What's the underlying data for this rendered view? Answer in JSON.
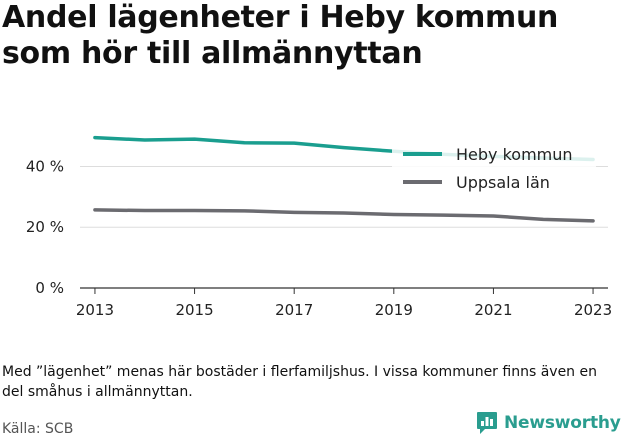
{
  "title": "Andel lägenheter i Heby kommun som hör till allmännyttan",
  "note": "Med ”lägenhet” menas här bostäder i flerfamiljshus. I vissa kommuner finns även en del småhus i allmännyttan.",
  "source": "Källa: SCB",
  "brand": {
    "name": "Newsworthy",
    "icon": "bar-chart-speech-bubble-icon",
    "color": "#2a9d8f"
  },
  "chart_data": {
    "type": "line",
    "title": "Andel lägenheter i Heby kommun som hör till allmännyttan",
    "xlabel": "",
    "ylabel": "",
    "x": [
      2013,
      2014,
      2015,
      2016,
      2017,
      2018,
      2019,
      2020,
      2021,
      2022,
      2023
    ],
    "xticks": [
      "2013",
      "2015",
      "2017",
      "2019",
      "2021",
      "2023"
    ],
    "xtick_values": [
      2013,
      2015,
      2017,
      2019,
      2021,
      2023
    ],
    "yticks": [
      "0 %",
      "20 %",
      "40 %"
    ],
    "ytick_values": [
      0,
      20,
      40
    ],
    "ylim": [
      0,
      52
    ],
    "xlim": [
      2012.7,
      2023.3
    ],
    "grid": "horizontal",
    "legend_position": "top-right",
    "series": [
      {
        "name": "Heby kommun",
        "color": "#1a9e8f",
        "values": [
          49.5,
          48.7,
          49.0,
          47.8,
          47.7,
          46.2,
          45.0,
          44.0,
          43.3,
          42.8,
          42.3
        ]
      },
      {
        "name": "Uppsala län",
        "color": "#6b6b70",
        "values": [
          25.7,
          25.5,
          25.5,
          25.4,
          24.9,
          24.7,
          24.2,
          24.0,
          23.7,
          22.6,
          22.1
        ]
      }
    ]
  }
}
